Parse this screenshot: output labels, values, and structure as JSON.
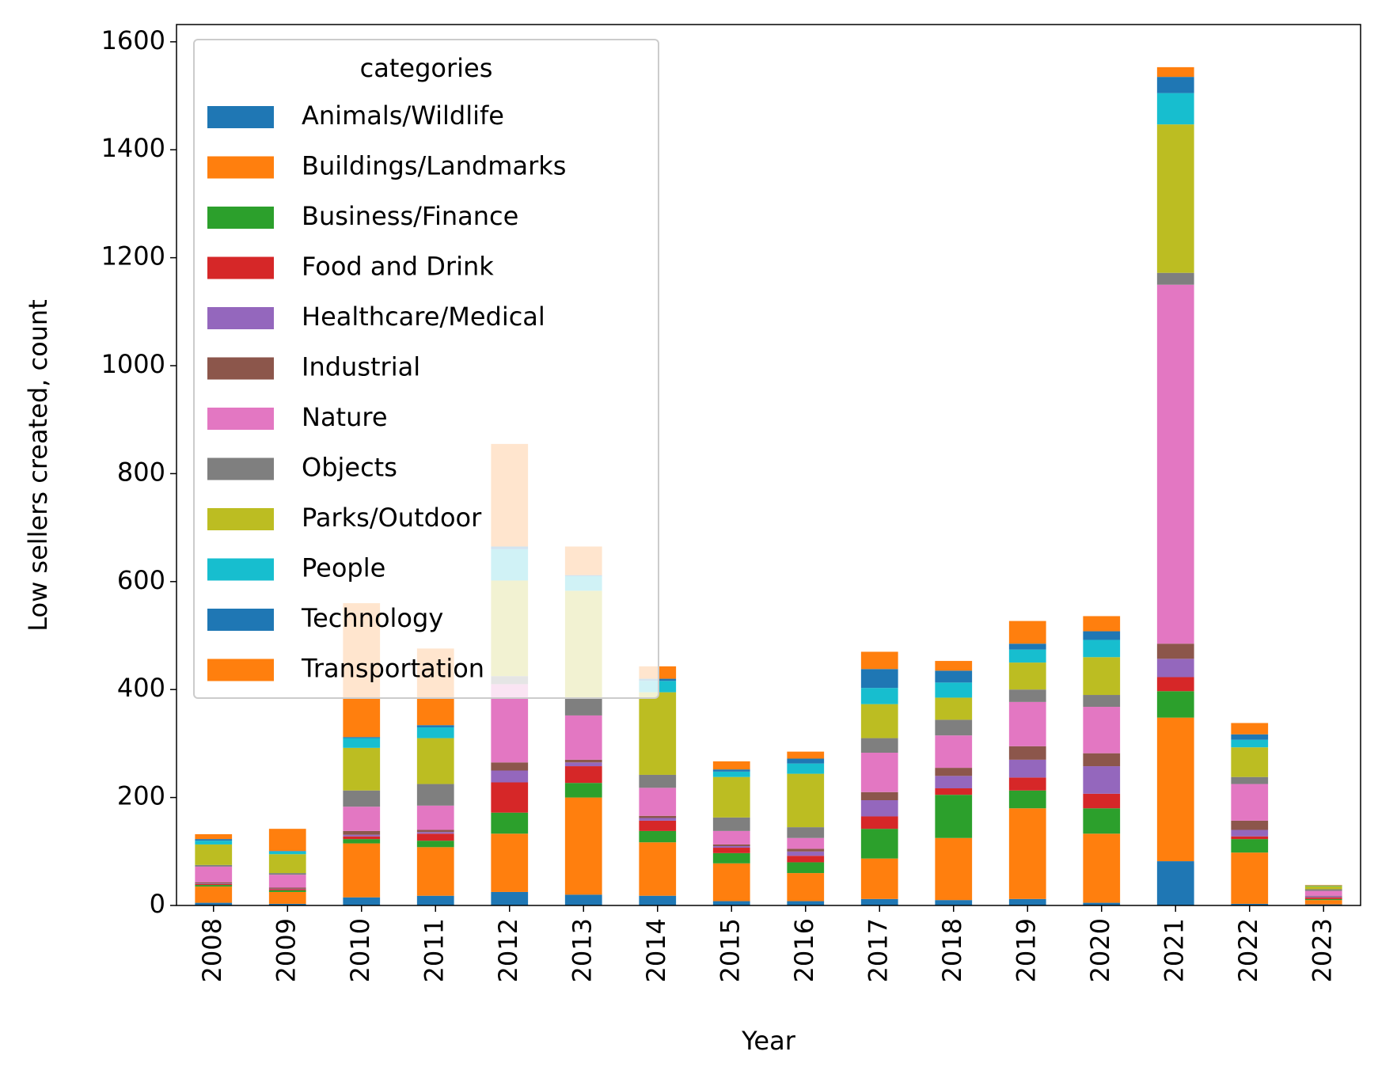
{
  "chart_data": {
    "type": "stacked_bar",
    "xlabel": "Year",
    "ylabel": "Low sellers created, count",
    "legend_title": "categories",
    "legend": "upper left",
    "categories": [
      "2008",
      "2009",
      "2010",
      "2011",
      "2012",
      "2013",
      "2014",
      "2015",
      "2016",
      "2017",
      "2018",
      "2019",
      "2020",
      "2021",
      "2022",
      "2023"
    ],
    "ylim": [
      0,
      1632
    ],
    "yticks": [
      0,
      200,
      400,
      600,
      800,
      1000,
      1200,
      1400,
      1600
    ],
    "series": [
      {
        "name": "Animals/Wildlife",
        "color": "#1f77b4",
        "values": [
          5,
          3,
          15,
          18,
          25,
          20,
          18,
          8,
          8,
          12,
          10,
          12,
          5,
          82,
          3,
          2
        ]
      },
      {
        "name": "Buildings/Landmarks",
        "color": "#ff7f0e",
        "values": [
          30,
          22,
          100,
          90,
          108,
          180,
          99,
          70,
          52,
          75,
          115,
          168,
          128,
          266,
          95,
          8
        ]
      },
      {
        "name": "Business/Finance",
        "color": "#2ca02c",
        "values": [
          3,
          3,
          8,
          12,
          39,
          27,
          21,
          19,
          20,
          55,
          80,
          33,
          47,
          49,
          25,
          2
        ]
      },
      {
        "name": "Food and Drink",
        "color": "#d62728",
        "values": [
          2,
          2,
          5,
          13,
          56,
          31,
          19,
          10,
          12,
          23,
          12,
          24,
          27,
          26,
          5,
          3
        ]
      },
      {
        "name": "Healthcare/Medical",
        "color": "#9467bd",
        "values": [
          1,
          1,
          3,
          3,
          22,
          7,
          5,
          3,
          8,
          30,
          23,
          33,
          51,
          34,
          12,
          2
        ]
      },
      {
        "name": "Industrial",
        "color": "#8c564b",
        "values": [
          2,
          2,
          7,
          4,
          15,
          5,
          4,
          3,
          5,
          15,
          15,
          25,
          24,
          28,
          17,
          1
        ]
      },
      {
        "name": "Nature",
        "color": "#e377c2",
        "values": [
          29,
          24,
          45,
          45,
          145,
          82,
          52,
          25,
          20,
          73,
          60,
          82,
          86,
          665,
          68,
          9
        ]
      },
      {
        "name": "Objects",
        "color": "#7f7f7f",
        "values": [
          3,
          3,
          30,
          40,
          15,
          33,
          24,
          25,
          20,
          27,
          29,
          23,
          22,
          22,
          13,
          3
        ]
      },
      {
        "name": "Parks/Outdoor",
        "color": "#bcbd22",
        "values": [
          38,
          35,
          79,
          85,
          177,
          198,
          153,
          75,
          99,
          63,
          41,
          50,
          70,
          275,
          55,
          6
        ]
      },
      {
        "name": "People",
        "color": "#17becf",
        "values": [
          7,
          5,
          18,
          20,
          58,
          27,
          21,
          10,
          19,
          30,
          28,
          24,
          32,
          58,
          14,
          1
        ]
      },
      {
        "name": "Technology",
        "color": "#1f77b4",
        "values": [
          3,
          1,
          2,
          4,
          5,
          2,
          4,
          4,
          9,
          35,
          22,
          11,
          16,
          30,
          10,
          0
        ]
      },
      {
        "name": "Transportation",
        "color": "#ff7f0e",
        "values": [
          9,
          41,
          248,
          142,
          190,
          53,
          23,
          15,
          13,
          32,
          18,
          42,
          28,
          18,
          21,
          1
        ]
      }
    ]
  }
}
